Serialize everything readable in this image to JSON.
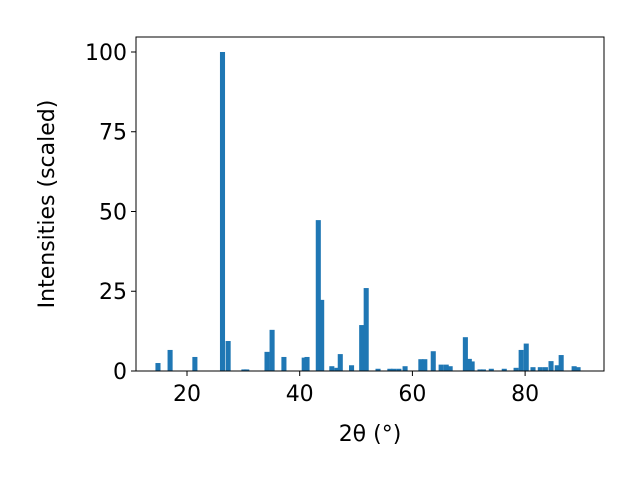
{
  "chart_data": {
    "type": "bar",
    "xlabel": "2θ (°)",
    "ylabel": "Intensities (scaled)",
    "x": [
      14.85,
      17.0,
      21.4,
      26.3,
      27.3,
      30.1,
      30.6,
      34.2,
      35.1,
      37.2,
      40.8,
      41.3,
      43.3,
      43.9,
      45.7,
      46.6,
      47.2,
      49.2,
      51.0,
      51.8,
      53.9,
      56.0,
      56.7,
      57.6,
      58.7,
      61.5,
      62.2,
      63.7,
      65.1,
      66.0,
      66.7,
      69.4,
      70.1,
      70.6,
      72.0,
      72.6,
      74.0,
      76.3,
      78.4,
      79.3,
      80.2,
      81.4,
      82.7,
      83.6,
      84.6,
      85.7,
      86.4,
      88.7,
      89.4
    ],
    "values": [
      2.5,
      6.6,
      4.4,
      100,
      9.4,
      0.5,
      0.5,
      6.0,
      12.9,
      4.4,
      4.2,
      4.4,
      47.3,
      22.3,
      1.5,
      1.0,
      5.3,
      1.8,
      14.4,
      26,
      0.7,
      0.7,
      0.7,
      0.7,
      1.5,
      3.7,
      3.7,
      6.2,
      2.0,
      2.0,
      1.5,
      10.6,
      3.8,
      3.0,
      0.5,
      0.5,
      0.7,
      0.7,
      1.0,
      6.6,
      8.6,
      1.2,
      1.2,
      1.2,
      3.1,
      1.8,
      5.0,
      1.5,
      1.2
    ],
    "color": "#1f77b4",
    "xlim": [
      10.95,
      94.0
    ],
    "xticks": [
      20,
      40,
      60,
      80
    ],
    "ylim": [
      0,
      104.7
    ],
    "yticks": [
      0,
      25,
      50,
      75,
      100
    ]
  }
}
